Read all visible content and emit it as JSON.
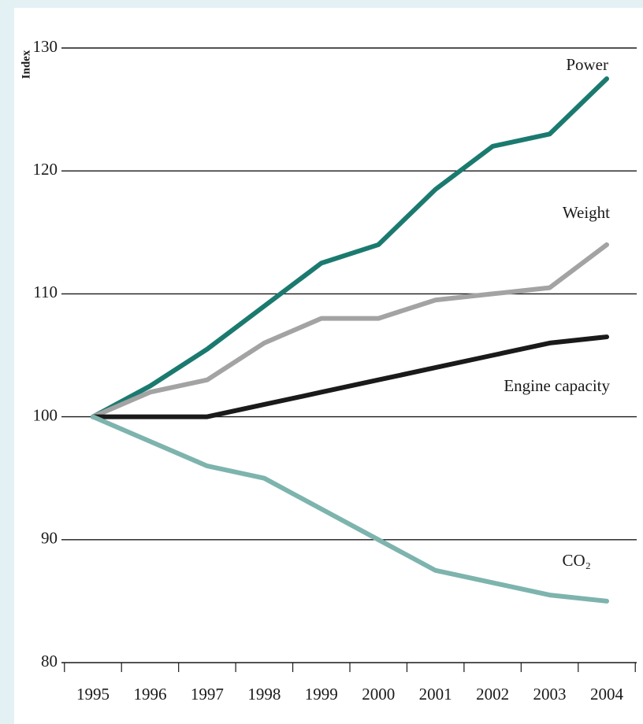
{
  "chart_data": {
    "type": "line",
    "y_label": "Index",
    "categories": [
      "1995",
      "1996",
      "1997",
      "1998",
      "1999",
      "2000",
      "2001",
      "2002",
      "2003",
      "2004"
    ],
    "series": [
      {
        "name": "Power",
        "color": "#1b7a6f",
        "values": [
          100,
          102.5,
          105.5,
          109,
          112.5,
          114,
          118.5,
          122,
          123,
          127.5
        ]
      },
      {
        "name": "Weight",
        "color": "#a3a3a3",
        "values": [
          100,
          102,
          103,
          106,
          108,
          108,
          109.5,
          110,
          110.5,
          114
        ]
      },
      {
        "name": "Engine capacity",
        "color": "#1a1a1a",
        "values": [
          100,
          100,
          100,
          101,
          102,
          103,
          104,
          105,
          106,
          106.5
        ]
      },
      {
        "name": "CO₂",
        "color": "#7db4ad",
        "values": [
          100,
          98,
          96,
          95,
          92.5,
          90,
          87.5,
          86.5,
          85.5,
          85
        ]
      }
    ],
    "ylim": [
      80,
      130
    ],
    "yticks": [
      80,
      90,
      100,
      110,
      120,
      130
    ],
    "grid": true
  }
}
